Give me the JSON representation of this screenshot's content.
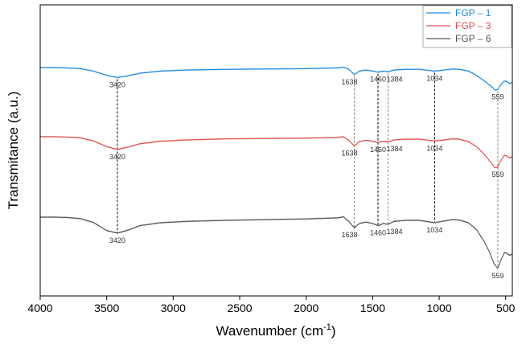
{
  "chart_data": {
    "type": "line",
    "title": "",
    "xlabel": "Wavenumber (cm",
    "xlabel_sup": "-1",
    "xlabel_close": ")",
    "ylabel": "Transmitance (a.u.)",
    "xlim": [
      4000,
      450
    ],
    "x_reversed": true,
    "x_ticks": [
      "4000",
      "3500",
      "3000",
      "2500",
      "2000",
      "1500",
      "1000",
      "500"
    ],
    "y_ticks_shown": false,
    "grid": false,
    "legend_position": "top-right",
    "series": [
      {
        "name": "FGP – 1",
        "color": "#1f8ae0",
        "points": [
          [
            4000,
            1.0
          ],
          [
            3900,
            1.0
          ],
          [
            3800,
            0.99
          ],
          [
            3700,
            0.97
          ],
          [
            3600,
            0.9
          ],
          [
            3500,
            0.78
          ],
          [
            3420,
            0.72
          ],
          [
            3350,
            0.76
          ],
          [
            3250,
            0.84
          ],
          [
            3100,
            0.9
          ],
          [
            2900,
            0.93
          ],
          [
            2600,
            0.95
          ],
          [
            2300,
            0.96
          ],
          [
            2000,
            0.97
          ],
          [
            1760,
            0.99
          ],
          [
            1720,
            1.01
          ],
          [
            1680,
            0.95
          ],
          [
            1638,
            0.8
          ],
          [
            1600,
            0.9
          ],
          [
            1550,
            0.93
          ],
          [
            1500,
            0.9
          ],
          [
            1460,
            0.87
          ],
          [
            1420,
            0.9
          ],
          [
            1384,
            0.88
          ],
          [
            1340,
            0.93
          ],
          [
            1250,
            0.95
          ],
          [
            1150,
            0.95
          ],
          [
            1080,
            0.92
          ],
          [
            1034,
            0.9
          ],
          [
            980,
            0.92
          ],
          [
            900,
            0.96
          ],
          [
            850,
            0.95
          ],
          [
            780,
            0.9
          ],
          [
            720,
            0.78
          ],
          [
            660,
            0.62
          ],
          [
            600,
            0.44
          ],
          [
            580,
            0.36
          ],
          [
            559,
            0.38
          ],
          [
            540,
            0.5
          ],
          [
            510,
            0.62
          ],
          [
            490,
            0.6
          ],
          [
            470,
            0.55
          ],
          [
            450,
            0.58
          ]
        ]
      },
      {
        "name": "FGP – 3",
        "color": "#e05050",
        "points": [
          [
            4000,
            1.0
          ],
          [
            3900,
            1.0
          ],
          [
            3800,
            0.99
          ],
          [
            3700,
            0.97
          ],
          [
            3600,
            0.88
          ],
          [
            3500,
            0.72
          ],
          [
            3420,
            0.64
          ],
          [
            3350,
            0.7
          ],
          [
            3250,
            0.8
          ],
          [
            3100,
            0.87
          ],
          [
            2900,
            0.91
          ],
          [
            2600,
            0.94
          ],
          [
            2300,
            0.95
          ],
          [
            2000,
            0.96
          ],
          [
            1760,
            0.98
          ],
          [
            1720,
            1.0
          ],
          [
            1680,
            0.9
          ],
          [
            1638,
            0.74
          ],
          [
            1600,
            0.86
          ],
          [
            1550,
            0.9
          ],
          [
            1500,
            0.87
          ],
          [
            1460,
            0.84
          ],
          [
            1420,
            0.87
          ],
          [
            1384,
            0.86
          ],
          [
            1340,
            0.91
          ],
          [
            1250,
            0.93
          ],
          [
            1150,
            0.93
          ],
          [
            1080,
            0.9
          ],
          [
            1034,
            0.88
          ],
          [
            980,
            0.9
          ],
          [
            900,
            0.94
          ],
          [
            850,
            0.93
          ],
          [
            780,
            0.86
          ],
          [
            720,
            0.72
          ],
          [
            660,
            0.5
          ],
          [
            600,
            0.22
          ],
          [
            580,
            0.12
          ],
          [
            559,
            0.14
          ],
          [
            540,
            0.3
          ],
          [
            510,
            0.48
          ],
          [
            490,
            0.45
          ],
          [
            470,
            0.4
          ],
          [
            450,
            0.44
          ]
        ]
      },
      {
        "name": "FGP – 6",
        "color": "#555555",
        "points": [
          [
            4000,
            1.0
          ],
          [
            3900,
            1.0
          ],
          [
            3800,
            0.99
          ],
          [
            3700,
            0.96
          ],
          [
            3600,
            0.85
          ],
          [
            3500,
            0.62
          ],
          [
            3420,
            0.55
          ],
          [
            3350,
            0.62
          ],
          [
            3250,
            0.76
          ],
          [
            3100,
            0.84
          ],
          [
            2900,
            0.88
          ],
          [
            2600,
            0.91
          ],
          [
            2300,
            0.93
          ],
          [
            2000,
            0.95
          ],
          [
            1760,
            0.98
          ],
          [
            1720,
            1.01
          ],
          [
            1680,
            0.88
          ],
          [
            1638,
            0.7
          ],
          [
            1600,
            0.82
          ],
          [
            1550,
            0.86
          ],
          [
            1500,
            0.82
          ],
          [
            1460,
            0.76
          ],
          [
            1420,
            0.82
          ],
          [
            1384,
            0.8
          ],
          [
            1340,
            0.88
          ],
          [
            1250,
            0.91
          ],
          [
            1150,
            0.91
          ],
          [
            1080,
            0.87
          ],
          [
            1034,
            0.84
          ],
          [
            980,
            0.88
          ],
          [
            900,
            0.93
          ],
          [
            850,
            0.92
          ],
          [
            780,
            0.84
          ],
          [
            720,
            0.65
          ],
          [
            660,
            0.3
          ],
          [
            620,
            0.0
          ],
          [
            590,
            -0.3
          ],
          [
            559,
            -0.45
          ],
          [
            540,
            -0.25
          ],
          [
            510,
            0.0
          ],
          [
            490,
            -0.02
          ],
          [
            470,
            -0.08
          ],
          [
            450,
            -0.05
          ]
        ]
      }
    ],
    "annotations": [
      {
        "series": 0,
        "x": 3420,
        "label": "3420"
      },
      {
        "series": 0,
        "x": 1638,
        "label": "1638"
      },
      {
        "series": 0,
        "x": 1460,
        "label": "1460"
      },
      {
        "series": 0,
        "x": 1384,
        "label": "1384"
      },
      {
        "series": 0,
        "x": 1034,
        "label": "1034"
      },
      {
        "series": 0,
        "x": 559,
        "label": "559"
      },
      {
        "series": 1,
        "x": 3420,
        "label": "3420"
      },
      {
        "series": 1,
        "x": 1638,
        "label": "1638"
      },
      {
        "series": 1,
        "x": 1460,
        "label": "1460"
      },
      {
        "series": 1,
        "x": 1384,
        "label": "1384"
      },
      {
        "series": 1,
        "x": 1034,
        "label": "1034"
      },
      {
        "series": 1,
        "x": 559,
        "label": "559"
      },
      {
        "series": 2,
        "x": 3420,
        "label": "3420"
      },
      {
        "series": 2,
        "x": 1638,
        "label": "1638"
      },
      {
        "series": 2,
        "x": 1460,
        "label": "1460"
      },
      {
        "series": 2,
        "x": 1384,
        "label": "1384"
      },
      {
        "series": 2,
        "x": 1034,
        "label": "1034"
      },
      {
        "series": 2,
        "x": 559,
        "label": "559"
      }
    ],
    "reference_lines": [
      {
        "x": 3420,
        "color": "#000000"
      },
      {
        "x": 1638,
        "color": "#888888"
      },
      {
        "x": 1460,
        "color": "#000000"
      },
      {
        "x": 1384,
        "color": "#888888"
      },
      {
        "x": 1034,
        "color": "#000000"
      },
      {
        "x": 559,
        "color": "#888888"
      }
    ]
  }
}
